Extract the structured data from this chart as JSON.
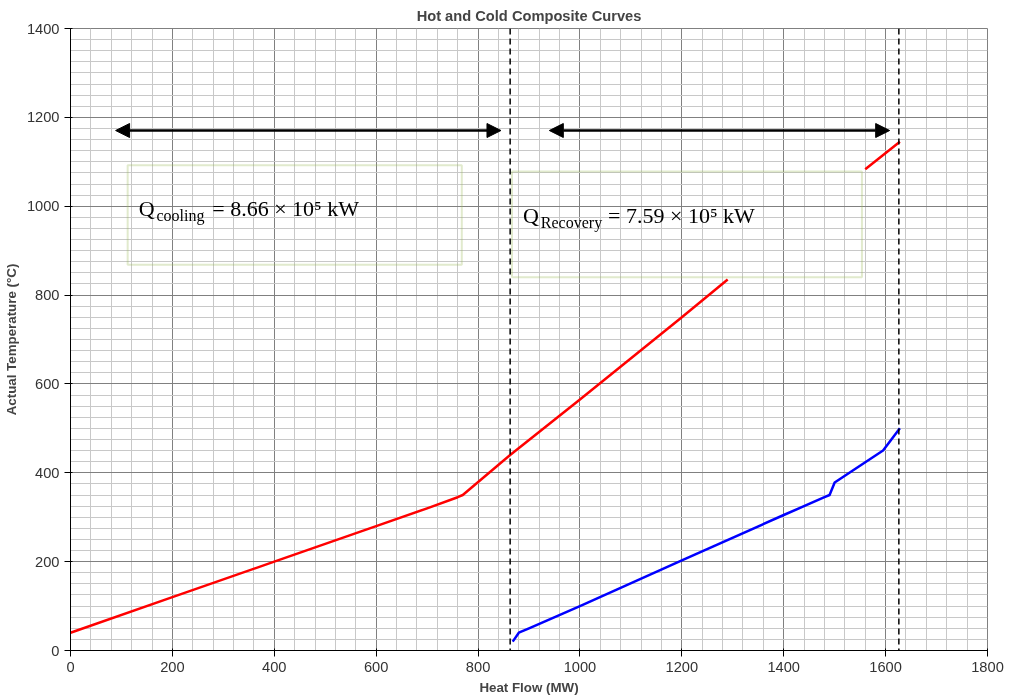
{
  "chart_data": {
    "type": "line",
    "title": "Hot and Cold Composite Curves",
    "xlabel": "Heat Flow (MW)",
    "ylabel": "Actual Temperature (°C)",
    "series": [
      {
        "color": "#ff0000",
        "x": [
          0,
          200,
          400,
          600,
          700,
          760,
          770,
          863,
          1000,
          1200,
          1290,
          1420,
          1560,
          1628
        ],
        "values": [
          40,
          120,
          200,
          280,
          320,
          345,
          350,
          440,
          565,
          750,
          835,
          null,
          1083,
          1145
        ]
      },
      {
        "color": "#0000ff",
        "x": [
          868,
          880,
          900,
          1000,
          1200,
          1400,
          1480,
          1490,
          1500,
          1595,
          1628
        ],
        "values": [
          20,
          40,
          50,
          100,
          203,
          305,
          345,
          350,
          378,
          450,
          500
        ]
      }
    ],
    "xlim": [
      0,
      1800
    ],
    "xticks": [
      0,
      200,
      400,
      600,
      800,
      1000,
      1200,
      1400,
      1600,
      1800
    ],
    "ylim": [
      0,
      1400
    ],
    "yticks": [
      0,
      200,
      400,
      600,
      800,
      1000,
      1200,
      1400
    ],
    "ref_lines": [
      {
        "axis": "x",
        "value": 863,
        "line_style": "dashed"
      },
      {
        "axis": "x",
        "value": 1626,
        "line_style": "dashed"
      }
    ],
    "annotations": [
      "Q$_{cooling}$ = 8.66 × 10⁵ kW",
      "Q$_{Recovery}$ = 7.59 × 10⁵ kW"
    ],
    "grid": true,
    "marker": "none",
    "line_style": "solid"
  }
}
